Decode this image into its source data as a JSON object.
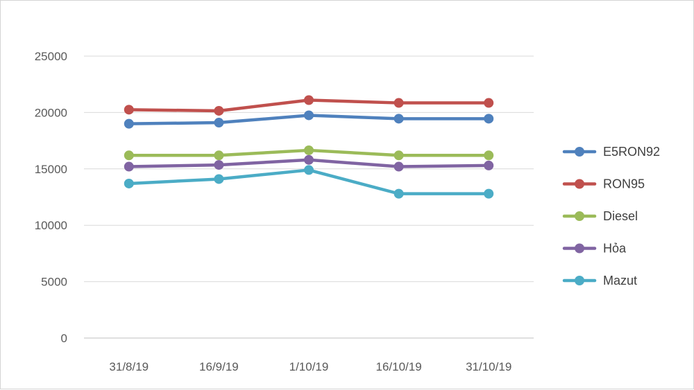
{
  "chart_data": {
    "type": "line",
    "title": "",
    "xlabel": "",
    "ylabel": "",
    "categories": [
      "31/8/19",
      "16/9/19",
      "1/10/19",
      "16/10/19",
      "31/10/19"
    ],
    "ylim": [
      0,
      25000
    ],
    "yticks": [
      0,
      5000,
      10000,
      15000,
      20000,
      25000
    ],
    "grid": true,
    "legend_position": "right",
    "series": [
      {
        "name": "E5RON92",
        "color": "#4f81bd",
        "values": [
          19000,
          19100,
          19750,
          19450,
          19450
        ]
      },
      {
        "name": "RON95",
        "color": "#c0504d",
        "values": [
          20250,
          20150,
          21100,
          20850,
          20850
        ]
      },
      {
        "name": "Diesel",
        "color": "#9bbb59",
        "values": [
          16200,
          16200,
          16650,
          16200,
          16200
        ]
      },
      {
        "name": "Hỏa",
        "color": "#8064a2",
        "values": [
          15200,
          15350,
          15800,
          15200,
          15300
        ]
      },
      {
        "name": "Mazut",
        "color": "#4bacc6",
        "values": [
          13700,
          14100,
          14900,
          12800,
          12800
        ]
      }
    ]
  }
}
